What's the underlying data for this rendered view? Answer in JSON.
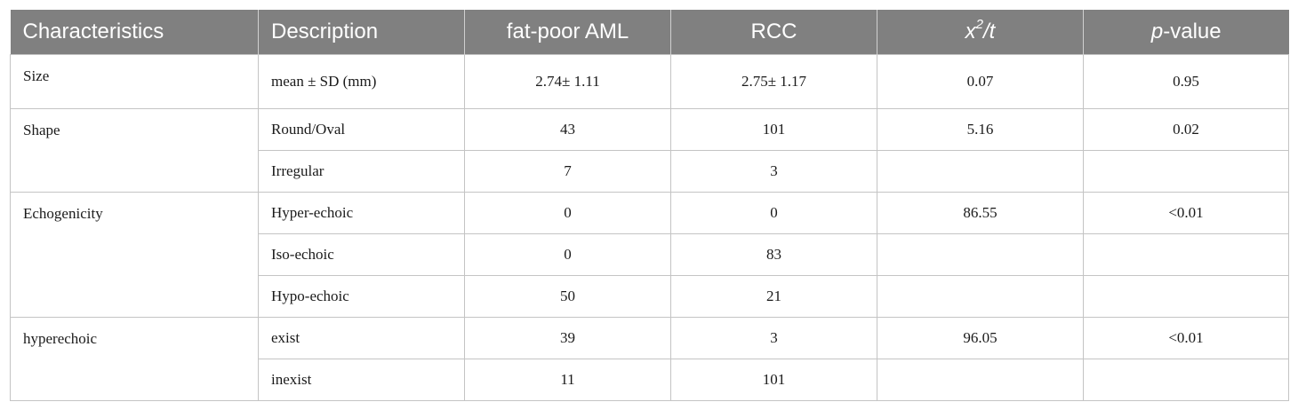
{
  "table": {
    "headers": {
      "characteristics": "Characteristics",
      "description": "Description",
      "fat_poor_aml": "fat-poor AML",
      "rcc": "RCC",
      "stat_x": "x",
      "stat_sup": "2",
      "stat_rest": "/t",
      "p_italic": "p",
      "p_rest": "-value"
    },
    "groups": [
      {
        "characteristic": "Size",
        "rows": [
          {
            "description": "mean ± SD (mm)",
            "aml": "2.74± 1.11",
            "rcc": "2.75± 1.17",
            "stat": "0.07",
            "p": "0.95"
          }
        ]
      },
      {
        "characteristic": "Shape",
        "rows": [
          {
            "description": "Round/Oval",
            "aml": "43",
            "rcc": "101",
            "stat": "5.16",
            "p": "0.02"
          },
          {
            "description": "Irregular",
            "aml": "7",
            "rcc": "3",
            "stat": "",
            "p": ""
          }
        ]
      },
      {
        "characteristic": "Echogenicity",
        "rows": [
          {
            "description": "Hyper-echoic",
            "aml": "0",
            "rcc": "0",
            "stat": "86.55",
            "p": "<0.01"
          },
          {
            "description": "Iso-echoic",
            "aml": "0",
            "rcc": "83",
            "stat": "",
            "p": ""
          },
          {
            "description": "Hypo-echoic",
            "aml": "50",
            "rcc": "21",
            "stat": "",
            "p": ""
          }
        ]
      },
      {
        "characteristic": "hyperechoic",
        "rows": [
          {
            "description": "exist",
            "aml": "39",
            "rcc": "3",
            "stat": "96.05",
            "p": "<0.01"
          },
          {
            "description": "inexist",
            "aml": "11",
            "rcc": "101",
            "stat": "",
            "p": ""
          }
        ]
      }
    ]
  }
}
